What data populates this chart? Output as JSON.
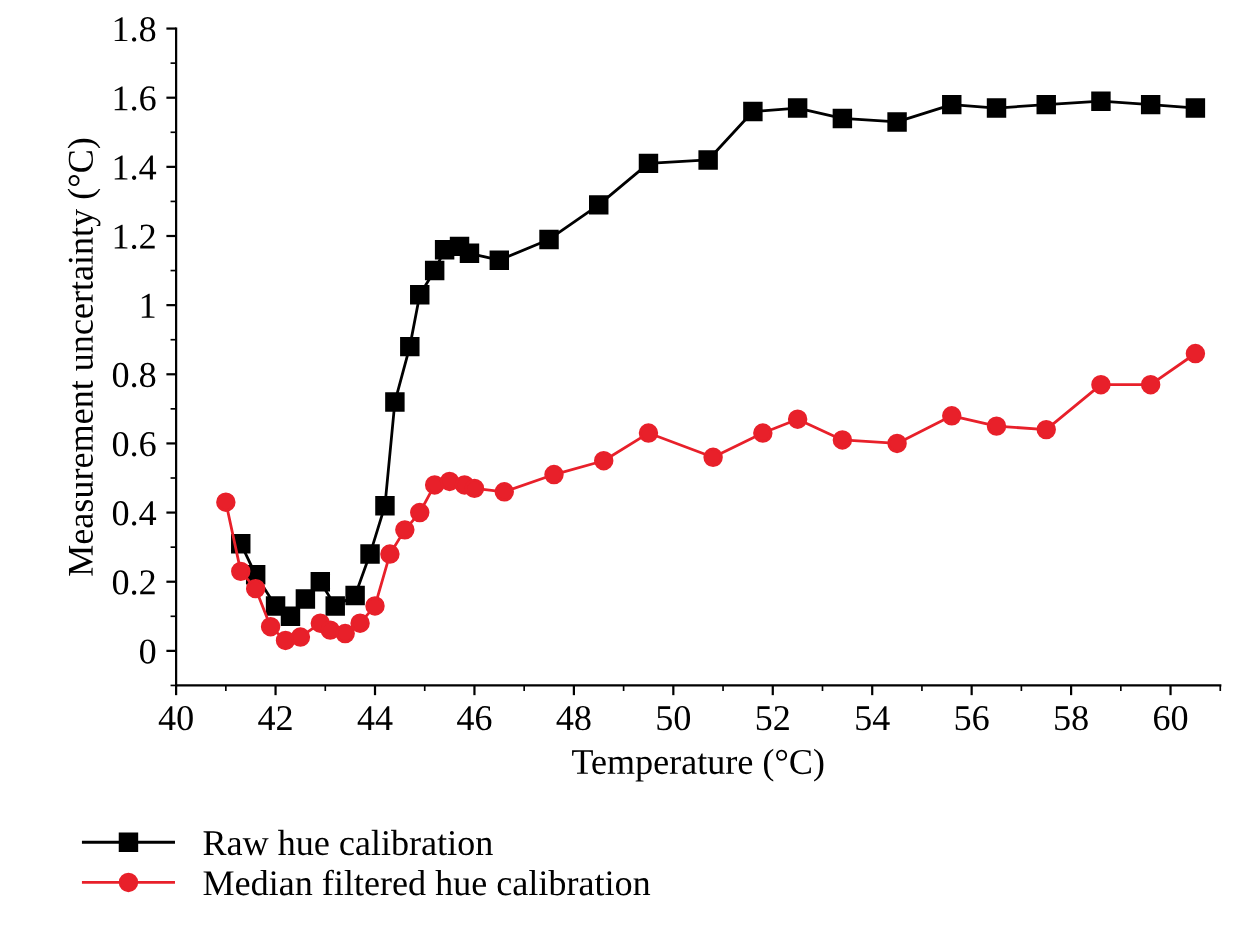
{
  "chart_data": {
    "type": "line",
    "xlabel": "Temperature (°C)",
    "ylabel": "Measurement uncertainty (°C)",
    "xlim": [
      40,
      61
    ],
    "xticks": [
      40,
      42,
      44,
      46,
      48,
      50,
      52,
      54,
      56,
      58,
      60
    ],
    "ylim": [
      -0.1,
      1.8
    ],
    "yticks": [
      0,
      0.2,
      0.4,
      0.6,
      0.8,
      1,
      1.2,
      1.4,
      1.6,
      1.8
    ],
    "grid": false,
    "legend": "bottom left",
    "series": [
      {
        "name": "Raw hue calibration",
        "color": "#000000",
        "marker": "square",
        "x": [
          41.3,
          41.6,
          42.0,
          42.3,
          42.6,
          42.9,
          43.2,
          43.6,
          43.9,
          44.2,
          44.4,
          44.7,
          44.9,
          45.2,
          45.4,
          45.7,
          45.9,
          46.5,
          47.5,
          48.5,
          49.5,
          50.7,
          51.6,
          52.5,
          53.4,
          54.5,
          55.6,
          56.5,
          57.5,
          58.6,
          59.6,
          60.5
        ],
        "values": [
          0.31,
          0.22,
          0.13,
          0.1,
          0.15,
          0.2,
          0.13,
          0.16,
          0.28,
          0.42,
          0.72,
          0.88,
          1.03,
          1.1,
          1.16,
          1.17,
          1.15,
          1.13,
          1.19,
          1.29,
          1.41,
          1.42,
          1.56,
          1.57,
          1.54,
          1.53,
          1.58,
          1.57,
          1.58,
          1.59,
          1.58,
          1.57
        ]
      },
      {
        "name": "Median filtered hue calibration",
        "color": "#e8202a",
        "marker": "circle",
        "x": [
          41.0,
          41.3,
          41.6,
          41.9,
          42.2,
          42.5,
          42.9,
          43.1,
          43.4,
          43.7,
          44.0,
          44.3,
          44.6,
          44.9,
          45.2,
          45.5,
          45.8,
          46.0,
          46.6,
          47.6,
          48.6,
          49.5,
          50.8,
          51.8,
          52.5,
          53.4,
          54.5,
          55.6,
          56.5,
          57.5,
          58.6,
          59.6,
          60.5
        ],
        "values": [
          0.43,
          0.23,
          0.18,
          0.07,
          0.03,
          0.04,
          0.08,
          0.06,
          0.05,
          0.08,
          0.13,
          0.28,
          0.35,
          0.4,
          0.48,
          0.49,
          0.48,
          0.47,
          0.46,
          0.51,
          0.55,
          0.63,
          0.56,
          0.63,
          0.67,
          0.61,
          0.6,
          0.68,
          0.65,
          0.64,
          0.77,
          0.77,
          0.86
        ]
      }
    ]
  }
}
